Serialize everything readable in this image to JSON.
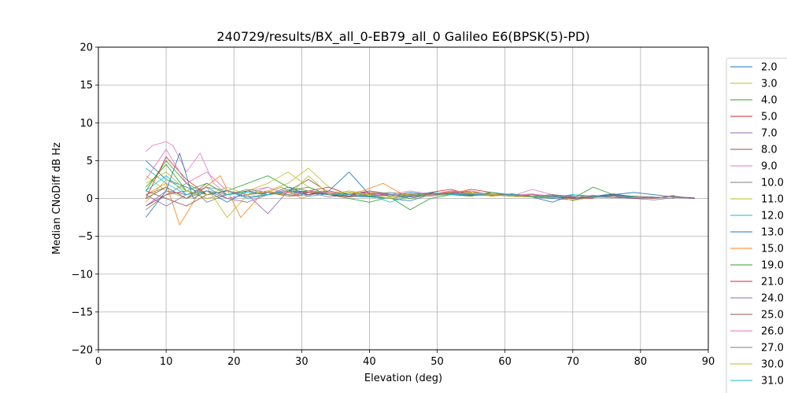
{
  "chart_data": {
    "type": "line",
    "title": "240729/results/BX_all_0-EB79_all_0 Galileo E6(BPSK(5)-PD)",
    "xlabel": "Elevation (deg)",
    "ylabel": "Median CNoDiff dB Hz",
    "xlim": [
      0,
      90
    ],
    "ylim": [
      -20,
      20
    ],
    "xticks": [
      "0",
      "10",
      "20",
      "30",
      "40",
      "50",
      "60",
      "70",
      "80",
      "90"
    ],
    "yticks": [
      "20",
      "15",
      "10",
      "5",
      "0",
      "−5",
      "−10",
      "−15",
      "−20"
    ],
    "grid": true,
    "legend_placement": "right-outside",
    "series": [
      {
        "name": "2.0",
        "color": "#1f77b4",
        "x": [
          7,
          10,
          13,
          16,
          19,
          22,
          25,
          28,
          31,
          34,
          37,
          40,
          43,
          46,
          49,
          52,
          55,
          58,
          61,
          64,
          67,
          70,
          73,
          76,
          79,
          82,
          85,
          88
        ],
        "y": [
          5.0,
          2.5,
          1.5,
          0.5,
          1.0,
          0.2,
          0.5,
          1.0,
          0.8,
          0.5,
          0.3,
          0.2,
          0.0,
          -0.3,
          0.5,
          0.8,
          0.6,
          0.5,
          0.4,
          0.2,
          0.0,
          -0.2,
          0.3,
          0.5,
          0.8,
          0.5,
          0.2,
          0.1
        ]
      },
      {
        "name": "3.0",
        "color": "#bcbd22",
        "x": [
          7,
          10,
          13,
          16,
          19,
          22,
          25,
          28,
          31,
          34,
          37,
          40,
          43,
          46,
          49,
          52,
          55,
          58,
          61,
          64,
          67,
          70,
          73,
          76
        ],
        "y": [
          3.0,
          1.0,
          0.0,
          1.5,
          -2.5,
          0.5,
          1.0,
          2.0,
          4.0,
          1.5,
          0.5,
          1.0,
          0.3,
          0.0,
          0.5,
          0.7,
          0.5,
          0.8,
          0.4,
          0.2,
          0.5,
          -0.3,
          0.2,
          0.4
        ]
      },
      {
        "name": "4.0",
        "color": "#2ca02c",
        "x": [
          7,
          10,
          13,
          16,
          19,
          22,
          25,
          28,
          31,
          34,
          37,
          40,
          43,
          46,
          49,
          52,
          55,
          58,
          61,
          64,
          67,
          70,
          73,
          76,
          79,
          82
        ],
        "y": [
          1.0,
          5.0,
          2.0,
          0.5,
          1.0,
          2.0,
          3.0,
          1.5,
          1.0,
          0.5,
          0.0,
          -0.5,
          0.2,
          -1.5,
          0.0,
          0.5,
          1.0,
          0.3,
          0.6,
          0.2,
          0.4,
          0.0,
          1.5,
          0.5,
          0.3,
          0.2
        ]
      },
      {
        "name": "5.0",
        "color": "#d62728",
        "x": [
          7,
          10,
          13,
          16,
          19,
          22,
          25,
          28,
          31,
          34,
          37,
          40,
          43,
          46,
          49,
          52,
          55,
          58,
          61,
          64,
          67,
          70,
          73
        ],
        "y": [
          -1.0,
          0.5,
          1.0,
          0.0,
          0.5,
          1.0,
          0.5,
          0.8,
          1.0,
          1.5,
          0.5,
          0.8,
          0.3,
          0.5,
          0.7,
          0.6,
          1.2,
          0.8,
          0.5,
          0.3,
          0.2,
          0.1,
          0.0
        ]
      },
      {
        "name": "7.0",
        "color": "#9467bd",
        "x": [
          7,
          10,
          13,
          16,
          19,
          22,
          25,
          28,
          31,
          34,
          37,
          40,
          43,
          46,
          49,
          52,
          55,
          58,
          61,
          64,
          67,
          70,
          73,
          76,
          79,
          82,
          85,
          88
        ],
        "y": [
          0.5,
          -1.0,
          0.5,
          1.0,
          0.0,
          -0.5,
          0.5,
          1.0,
          0.8,
          0.2,
          0.5,
          0.3,
          0.0,
          0.4,
          0.6,
          0.5,
          0.8,
          0.6,
          0.4,
          0.2,
          0.3,
          0.0,
          0.2,
          0.1,
          0.0,
          -0.2,
          0.1,
          0.0
        ]
      },
      {
        "name": "8.0",
        "color": "#8c564b",
        "x": [
          7,
          10,
          13,
          16,
          19,
          22,
          25,
          28,
          31,
          34,
          37,
          40,
          43,
          46,
          49,
          52,
          55,
          58,
          61,
          64,
          67,
          70,
          73,
          76,
          79,
          82,
          85
        ],
        "y": [
          0.0,
          1.5,
          0.0,
          2.0,
          0.5,
          1.0,
          0.5,
          1.0,
          2.5,
          0.8,
          0.5,
          1.0,
          0.6,
          0.2,
          0.5,
          1.0,
          0.8,
          0.5,
          0.3,
          0.5,
          0.2,
          0.0,
          0.3,
          0.5,
          0.2,
          0.0,
          0.4
        ]
      },
      {
        "name": "9.0",
        "color": "#e377c2",
        "x": [
          7,
          8,
          10,
          11,
          13,
          15,
          17,
          19,
          22,
          25,
          28,
          31,
          34,
          37,
          40,
          43,
          46,
          49,
          52,
          55,
          58,
          61,
          64,
          67,
          70
        ],
        "y": [
          6.2,
          7.0,
          7.5,
          7.0,
          3.5,
          6.0,
          2.0,
          0.5,
          1.0,
          1.5,
          0.5,
          1.0,
          0.8,
          0.5,
          0.3,
          0.5,
          1.0,
          0.6,
          0.8,
          1.0,
          0.5,
          0.3,
          1.2,
          0.5,
          0.2
        ]
      },
      {
        "name": "10.0",
        "color": "#7f7f7f",
        "x": [
          7,
          10,
          13,
          16,
          19,
          22,
          25,
          28,
          31,
          34,
          37,
          40,
          43,
          46,
          49,
          52,
          55,
          58,
          61,
          64,
          67,
          70,
          73,
          76,
          79
        ],
        "y": [
          -1.5,
          0.5,
          2.0,
          -0.5,
          0.5,
          1.0,
          0.5,
          1.2,
          0.8,
          0.5,
          1.0,
          0.5,
          0.3,
          0.6,
          0.5,
          0.8,
          0.6,
          0.4,
          0.5,
          0.2,
          0.5,
          0.3,
          0.1,
          0.4,
          0.2
        ]
      },
      {
        "name": "11.0",
        "color": "#bcbd22",
        "x": [
          7,
          10,
          13,
          16,
          19,
          22,
          25,
          28,
          31,
          34,
          37,
          40,
          43,
          46,
          49,
          52,
          55,
          58,
          61,
          64
        ],
        "y": [
          2.0,
          3.5,
          1.0,
          0.0,
          0.5,
          1.0,
          2.0,
          3.5,
          1.5,
          0.5,
          1.0,
          0.5,
          0.0,
          0.3,
          0.8,
          0.5,
          0.7,
          0.3,
          0.5,
          0.2
        ]
      },
      {
        "name": "12.0",
        "color": "#17becf",
        "x": [
          7,
          10,
          13,
          16,
          19,
          22,
          25,
          28,
          31,
          34,
          37,
          40,
          43,
          46,
          49,
          52,
          55,
          58,
          61,
          64,
          67,
          70
        ],
        "y": [
          4.0,
          2.0,
          0.5,
          1.5,
          1.0,
          0.0,
          0.5,
          1.0,
          0.5,
          0.8,
          0.2,
          0.5,
          -0.5,
          0.3,
          0.6,
          0.5,
          0.4,
          0.8,
          0.5,
          0.3,
          0.1,
          0.5
        ]
      },
      {
        "name": "13.0",
        "color": "#1f77b4",
        "x": [
          7,
          10,
          12,
          14,
          16,
          19,
          22,
          25,
          28,
          31,
          34,
          37,
          40,
          43,
          46,
          49,
          52,
          55,
          58,
          61,
          64,
          67,
          70,
          73,
          76,
          79
        ],
        "y": [
          -2.5,
          1.0,
          6.0,
          0.0,
          1.0,
          -0.5,
          1.0,
          0.5,
          1.5,
          0.5,
          1.0,
          3.5,
          0.5,
          0.3,
          0.8,
          0.5,
          0.6,
          0.4,
          0.5,
          0.3,
          0.2,
          -0.5,
          0.5,
          0.3,
          0.6,
          0.2
        ]
      },
      {
        "name": "15.0",
        "color": "#ff7f0e",
        "x": [
          7,
          10,
          12,
          15,
          18,
          21,
          24,
          27,
          30,
          33,
          36,
          39,
          42,
          45,
          48,
          51,
          54,
          57,
          60,
          63,
          66
        ],
        "y": [
          0.5,
          2.0,
          -3.5,
          1.0,
          3.0,
          -2.5,
          0.5,
          1.5,
          0.0,
          1.0,
          0.5,
          1.0,
          2.0,
          0.5,
          0.3,
          0.8,
          1.0,
          0.5,
          0.6,
          0.3,
          0.2
        ]
      },
      {
        "name": "19.0",
        "color": "#2ca02c",
        "x": [
          7,
          10,
          13,
          16,
          19,
          22,
          25,
          28,
          31,
          34,
          37,
          40,
          43,
          46,
          49,
          52,
          55,
          58,
          61
        ],
        "y": [
          1.5,
          4.5,
          1.0,
          2.0,
          0.5,
          1.0,
          0.5,
          1.0,
          1.5,
          0.5,
          0.8,
          0.3,
          0.5,
          0.0,
          0.6,
          0.5,
          0.3,
          0.8,
          0.4
        ]
      },
      {
        "name": "21.0",
        "color": "#d62728",
        "x": [
          7,
          10,
          13,
          16,
          19,
          22,
          25,
          28,
          31,
          34,
          37,
          40,
          43,
          46,
          49,
          52,
          55,
          58,
          61,
          64,
          67,
          70
        ],
        "y": [
          0.0,
          5.5,
          2.5,
          0.5,
          1.0,
          0.5,
          1.0,
          0.3,
          0.8,
          0.5,
          0.2,
          0.6,
          0.5,
          0.3,
          0.8,
          1.2,
          0.5,
          0.4,
          0.6,
          0.3,
          0.2,
          0.0
        ]
      },
      {
        "name": "24.0",
        "color": "#9467bd",
        "x": [
          7,
          10,
          13,
          16,
          19,
          22,
          25,
          28,
          31,
          34,
          37,
          40,
          43,
          46,
          49,
          52,
          55,
          58,
          61,
          64,
          67,
          70,
          73,
          76,
          79,
          82
        ],
        "y": [
          -1.0,
          1.0,
          0.5,
          1.5,
          0.0,
          0.5,
          -2.0,
          1.0,
          0.5,
          0.8,
          0.3,
          1.0,
          0.5,
          0.2,
          0.5,
          0.8,
          0.6,
          0.4,
          0.5,
          0.3,
          0.5,
          0.2,
          0.4,
          0.3,
          0.1,
          0.2
        ]
      },
      {
        "name": "25.0",
        "color": "#8c564b",
        "x": [
          7,
          10,
          13,
          16,
          19,
          22,
          25,
          28,
          31,
          34,
          37,
          40,
          43,
          46,
          49,
          52,
          55,
          58,
          61,
          64,
          67,
          70,
          73,
          76,
          79,
          82,
          85,
          88
        ],
        "y": [
          1.0,
          0.0,
          -1.0,
          0.5,
          1.0,
          0.5,
          0.8,
          0.3,
          0.5,
          1.0,
          0.5,
          0.2,
          0.5,
          0.3,
          0.6,
          0.5,
          0.8,
          0.5,
          0.3,
          0.2,
          0.4,
          0.0,
          0.2,
          0.3,
          0.0,
          0.1,
          0.3,
          0.0
        ]
      },
      {
        "name": "26.0",
        "color": "#e377c2",
        "x": [
          7,
          10,
          13,
          16,
          19,
          22,
          25,
          28,
          31,
          34,
          37,
          40,
          43,
          46,
          49,
          52,
          55,
          58,
          61,
          64,
          67,
          70,
          73
        ],
        "y": [
          2.5,
          6.5,
          2.0,
          3.5,
          1.0,
          0.5,
          1.5,
          0.5,
          1.0,
          0.8,
          0.3,
          0.5,
          0.6,
          0.3,
          0.5,
          1.0,
          0.8,
          0.5,
          0.4,
          0.6,
          0.3,
          0.2,
          0.4
        ]
      },
      {
        "name": "27.0",
        "color": "#7f7f7f",
        "x": [
          7,
          10,
          13,
          16,
          19,
          22,
          25,
          28,
          31,
          34,
          37,
          40,
          43,
          46,
          49,
          52,
          55,
          58,
          61,
          64,
          67,
          70,
          73,
          76,
          79,
          82,
          85
        ],
        "y": [
          0.5,
          1.5,
          0.0,
          1.0,
          0.5,
          1.2,
          0.8,
          0.5,
          1.0,
          0.6,
          0.3,
          0.5,
          0.8,
          0.5,
          0.3,
          0.6,
          0.5,
          0.4,
          0.6,
          0.3,
          0.5,
          0.2,
          0.4,
          0.1,
          0.3,
          0.2,
          0.0
        ]
      },
      {
        "name": "30.0",
        "color": "#bcbd22",
        "x": [
          7,
          10,
          13,
          16,
          19,
          22,
          25,
          28,
          31,
          34,
          37,
          40,
          43,
          46,
          49,
          52,
          55,
          58,
          61,
          64,
          67
        ],
        "y": [
          -0.5,
          2.5,
          1.0,
          0.5,
          1.5,
          0.5,
          1.0,
          0.3,
          3.0,
          0.5,
          0.8,
          0.5,
          0.3,
          0.6,
          0.4,
          0.5,
          0.8,
          0.5,
          0.3,
          0.2,
          0.4
        ]
      },
      {
        "name": "31.0",
        "color": "#17becf",
        "x": [
          7,
          10,
          13,
          16,
          19,
          22,
          25,
          28,
          31,
          34,
          37,
          40,
          43,
          46,
          49,
          52,
          55,
          58,
          61,
          64,
          67,
          70,
          73,
          76,
          79
        ],
        "y": [
          1.0,
          3.0,
          0.5,
          1.0,
          0.5,
          0.8,
          0.5,
          1.0,
          0.3,
          0.6,
          0.5,
          0.2,
          0.5,
          0.3,
          0.8,
          0.5,
          0.6,
          0.4,
          0.5,
          0.3,
          0.2,
          0.5,
          0.3,
          0.1,
          0.2
        ]
      }
    ]
  }
}
